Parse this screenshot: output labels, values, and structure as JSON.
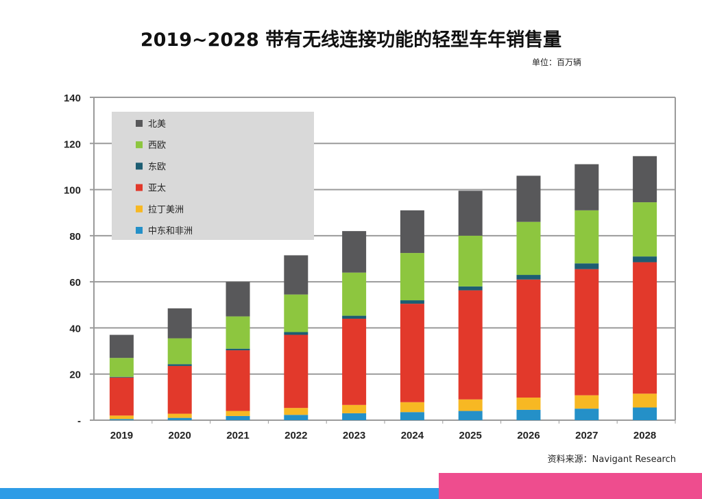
{
  "title": "2019~2028 带有无线连接功能的轻型车年销售量",
  "unit": "单位：百万辆",
  "source": "资料来源：Navigant Research",
  "chart_data": {
    "type": "bar",
    "stacked": true,
    "categories": [
      "2019",
      "2020",
      "2021",
      "2022",
      "2023",
      "2024",
      "2025",
      "2026",
      "2027",
      "2028"
    ],
    "ylim": [
      0,
      140
    ],
    "yticks": [
      0,
      20,
      40,
      60,
      80,
      100,
      120,
      140
    ],
    "ytick_labels": [
      "-",
      "20",
      "40",
      "60",
      "80",
      "100",
      "120",
      "140"
    ],
    "grid": true,
    "legend_position": "top-left",
    "series": [
      {
        "name": "中东和非洲",
        "color": "#2490c8",
        "values": [
          0.5,
          1,
          1.8,
          2.3,
          3,
          3.5,
          4,
          4.5,
          5,
          5.5
        ]
      },
      {
        "name": "拉丁美洲",
        "color": "#f7b823",
        "values": [
          1.5,
          1.8,
          2.2,
          3,
          3.6,
          4.3,
          5,
          5.3,
          5.8,
          6
        ]
      },
      {
        "name": "亚太",
        "color": "#e2392b",
        "values": [
          16.5,
          20.7,
          26.3,
          31.7,
          37.4,
          42.7,
          47.3,
          51.2,
          54.7,
          57
        ]
      },
      {
        "name": "东欧",
        "color": "#1d5d72",
        "values": [
          0.3,
          0.8,
          0.7,
          1.2,
          1.3,
          1.5,
          1.7,
          2,
          2.5,
          2.5
        ]
      },
      {
        "name": "西欧",
        "color": "#8dc63f",
        "values": [
          8.2,
          11.2,
          14,
          16.3,
          18.7,
          20.5,
          22,
          23,
          23,
          23.5
        ]
      },
      {
        "name": "北美",
        "color": "#58585a",
        "values": [
          10,
          13,
          15,
          17,
          18,
          18.5,
          19.5,
          20,
          20,
          20
        ]
      }
    ],
    "legend_order": [
      "北美",
      "西欧",
      "东欧",
      "亚太",
      "拉丁美洲",
      "中东和非洲"
    ]
  }
}
